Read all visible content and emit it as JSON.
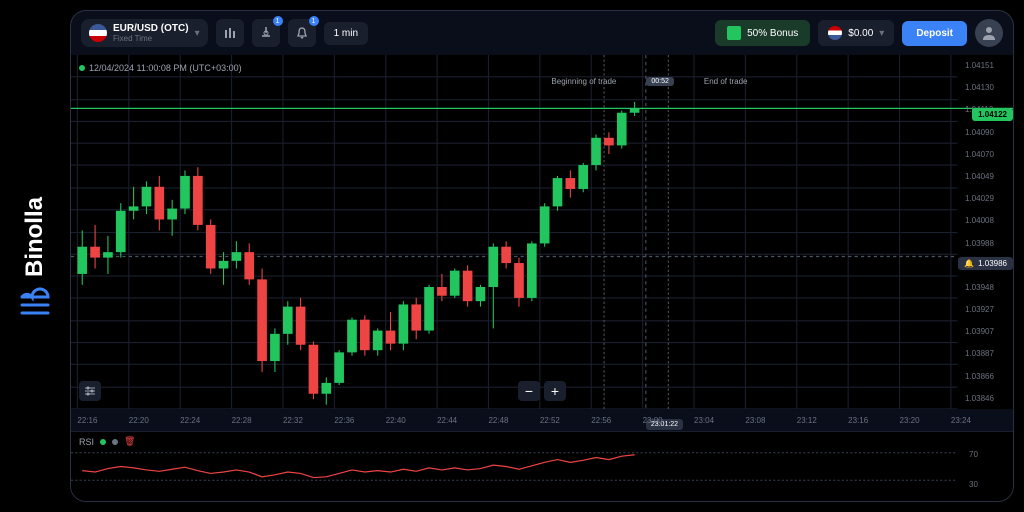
{
  "brand": {
    "name": "Binolla"
  },
  "topbar": {
    "asset_name": "EUR/USD (OTC)",
    "asset_type": "Fixed Time",
    "badge1": "1",
    "badge2": "1",
    "timeframe": "1 min",
    "bonus_label": "50% Bonus",
    "balance": "$0.00",
    "deposit_label": "Deposit"
  },
  "chart": {
    "timestamp_label": "12/04/2024  11:00:08 PM  (UTC+03:00)",
    "begin_trade": "Beginning of trade",
    "end_trade": "End of trade",
    "countdown": "00:52",
    "current_price": "1.04122",
    "crosshair_price": "1.03986",
    "ylim": [
      1.03846,
      1.04171
    ],
    "price_ticks": [
      "1.04151",
      "1.04130",
      "1.04110",
      "1.04090",
      "1.04070",
      "1.04049",
      "1.04029",
      "1.04008",
      "1.03988",
      "1.03968",
      "1.03948",
      "1.03927",
      "1.03907",
      "1.03887",
      "1.03866",
      "1.03846"
    ],
    "time_ticks": [
      "22:16",
      "22:20",
      "22:24",
      "22:28",
      "22:32",
      "22:36",
      "22:40",
      "22:44",
      "22:48",
      "22:52",
      "22:56",
      "23:00",
      "23:04",
      "23:08",
      "23:12",
      "23:16",
      "23:20",
      "23:24"
    ],
    "time_current": "23:01:22",
    "colors": {
      "up": "#22c55e",
      "down": "#ef4444",
      "bg": "#000000",
      "grid": "#1a1f2e",
      "text": "#6b7280",
      "line": "#22c55e"
    },
    "candles": [
      {
        "x": 0,
        "o": 1.0397,
        "h": 1.0401,
        "l": 1.0396,
        "c": 1.03995,
        "up": true
      },
      {
        "x": 1,
        "o": 1.03995,
        "h": 1.04015,
        "l": 1.03975,
        "c": 1.03985,
        "up": false
      },
      {
        "x": 2,
        "o": 1.03985,
        "h": 1.04005,
        "l": 1.0397,
        "c": 1.0399,
        "up": true
      },
      {
        "x": 3,
        "o": 1.0399,
        "h": 1.04035,
        "l": 1.03985,
        "c": 1.04028,
        "up": true
      },
      {
        "x": 4,
        "o": 1.04028,
        "h": 1.0405,
        "l": 1.0402,
        "c": 1.04032,
        "up": true
      },
      {
        "x": 5,
        "o": 1.04032,
        "h": 1.04055,
        "l": 1.04025,
        "c": 1.0405,
        "up": true
      },
      {
        "x": 6,
        "o": 1.0405,
        "h": 1.0406,
        "l": 1.0401,
        "c": 1.0402,
        "up": false
      },
      {
        "x": 7,
        "o": 1.0402,
        "h": 1.04038,
        "l": 1.04005,
        "c": 1.0403,
        "up": true
      },
      {
        "x": 8,
        "o": 1.0403,
        "h": 1.04065,
        "l": 1.04025,
        "c": 1.0406,
        "up": true
      },
      {
        "x": 9,
        "o": 1.0406,
        "h": 1.04068,
        "l": 1.0401,
        "c": 1.04015,
        "up": false
      },
      {
        "x": 10,
        "o": 1.04015,
        "h": 1.0402,
        "l": 1.0397,
        "c": 1.03975,
        "up": false
      },
      {
        "x": 11,
        "o": 1.03975,
        "h": 1.0399,
        "l": 1.0396,
        "c": 1.03982,
        "up": true
      },
      {
        "x": 12,
        "o": 1.03982,
        "h": 1.04,
        "l": 1.03975,
        "c": 1.0399,
        "up": true
      },
      {
        "x": 13,
        "o": 1.0399,
        "h": 1.03998,
        "l": 1.0396,
        "c": 1.03965,
        "up": false
      },
      {
        "x": 14,
        "o": 1.03965,
        "h": 1.03975,
        "l": 1.0388,
        "c": 1.0389,
        "up": false
      },
      {
        "x": 15,
        "o": 1.0389,
        "h": 1.0392,
        "l": 1.0388,
        "c": 1.03915,
        "up": true
      },
      {
        "x": 16,
        "o": 1.03915,
        "h": 1.03945,
        "l": 1.03905,
        "c": 1.0394,
        "up": true
      },
      {
        "x": 17,
        "o": 1.0394,
        "h": 1.03948,
        "l": 1.039,
        "c": 1.03905,
        "up": false
      },
      {
        "x": 18,
        "o": 1.03905,
        "h": 1.03908,
        "l": 1.03855,
        "c": 1.0386,
        "up": false
      },
      {
        "x": 19,
        "o": 1.0386,
        "h": 1.03875,
        "l": 1.0385,
        "c": 1.0387,
        "up": true
      },
      {
        "x": 20,
        "o": 1.0387,
        "h": 1.039,
        "l": 1.03868,
        "c": 1.03898,
        "up": true
      },
      {
        "x": 21,
        "o": 1.03898,
        "h": 1.0393,
        "l": 1.03895,
        "c": 1.03928,
        "up": true
      },
      {
        "x": 22,
        "o": 1.03928,
        "h": 1.03932,
        "l": 1.03895,
        "c": 1.039,
        "up": false
      },
      {
        "x": 23,
        "o": 1.039,
        "h": 1.0392,
        "l": 1.03895,
        "c": 1.03918,
        "up": true
      },
      {
        "x": 24,
        "o": 1.03918,
        "h": 1.03935,
        "l": 1.039,
        "c": 1.03906,
        "up": false
      },
      {
        "x": 25,
        "o": 1.03906,
        "h": 1.03945,
        "l": 1.039,
        "c": 1.03942,
        "up": true
      },
      {
        "x": 26,
        "o": 1.03942,
        "h": 1.03948,
        "l": 1.0391,
        "c": 1.03918,
        "up": false
      },
      {
        "x": 27,
        "o": 1.03918,
        "h": 1.0396,
        "l": 1.03915,
        "c": 1.03958,
        "up": true
      },
      {
        "x": 28,
        "o": 1.03958,
        "h": 1.0397,
        "l": 1.03945,
        "c": 1.0395,
        "up": false
      },
      {
        "x": 29,
        "o": 1.0395,
        "h": 1.03975,
        "l": 1.03948,
        "c": 1.03973,
        "up": true
      },
      {
        "x": 30,
        "o": 1.03973,
        "h": 1.03978,
        "l": 1.0394,
        "c": 1.03945,
        "up": false
      },
      {
        "x": 31,
        "o": 1.03945,
        "h": 1.0396,
        "l": 1.0394,
        "c": 1.03958,
        "up": true
      },
      {
        "x": 32,
        "o": 1.03958,
        "h": 1.03998,
        "l": 1.0392,
        "c": 1.03995,
        "up": true
      },
      {
        "x": 33,
        "o": 1.03995,
        "h": 1.04,
        "l": 1.03975,
        "c": 1.0398,
        "up": false
      },
      {
        "x": 34,
        "o": 1.0398,
        "h": 1.03985,
        "l": 1.0394,
        "c": 1.03948,
        "up": false
      },
      {
        "x": 35,
        "o": 1.03948,
        "h": 1.04,
        "l": 1.03945,
        "c": 1.03998,
        "up": true
      },
      {
        "x": 36,
        "o": 1.03998,
        "h": 1.04035,
        "l": 1.03995,
        "c": 1.04032,
        "up": true
      },
      {
        "x": 37,
        "o": 1.04032,
        "h": 1.0406,
        "l": 1.04028,
        "c": 1.04058,
        "up": true
      },
      {
        "x": 38,
        "o": 1.04058,
        "h": 1.04065,
        "l": 1.0404,
        "c": 1.04048,
        "up": false
      },
      {
        "x": 39,
        "o": 1.04048,
        "h": 1.04072,
        "l": 1.04045,
        "c": 1.0407,
        "up": true
      },
      {
        "x": 40,
        "o": 1.0407,
        "h": 1.04098,
        "l": 1.04065,
        "c": 1.04095,
        "up": true
      },
      {
        "x": 41,
        "o": 1.04095,
        "h": 1.041,
        "l": 1.0408,
        "c": 1.04088,
        "up": false
      },
      {
        "x": 42,
        "o": 1.04088,
        "h": 1.0412,
        "l": 1.04085,
        "c": 1.04118,
        "up": true
      },
      {
        "x": 43,
        "o": 1.04118,
        "h": 1.04128,
        "l": 1.04115,
        "c": 1.04122,
        "up": true
      }
    ]
  },
  "rsi": {
    "label": "RSI",
    "dot_color_1": "#22c55e",
    "dot_color_2": "#6b7280",
    "delete_color": "#ef4444",
    "ticks": [
      "70",
      "30"
    ],
    "line_color": "#ef4444",
    "values": [
      44,
      42,
      47,
      50,
      48,
      45,
      43,
      46,
      49,
      44,
      40,
      42,
      45,
      42,
      35,
      38,
      42,
      40,
      34,
      35,
      40,
      45,
      42,
      44,
      42,
      46,
      43,
      48,
      45,
      48,
      45,
      47,
      52,
      50,
      46,
      51,
      56,
      60,
      56,
      59,
      63,
      60,
      65,
      67
    ]
  }
}
